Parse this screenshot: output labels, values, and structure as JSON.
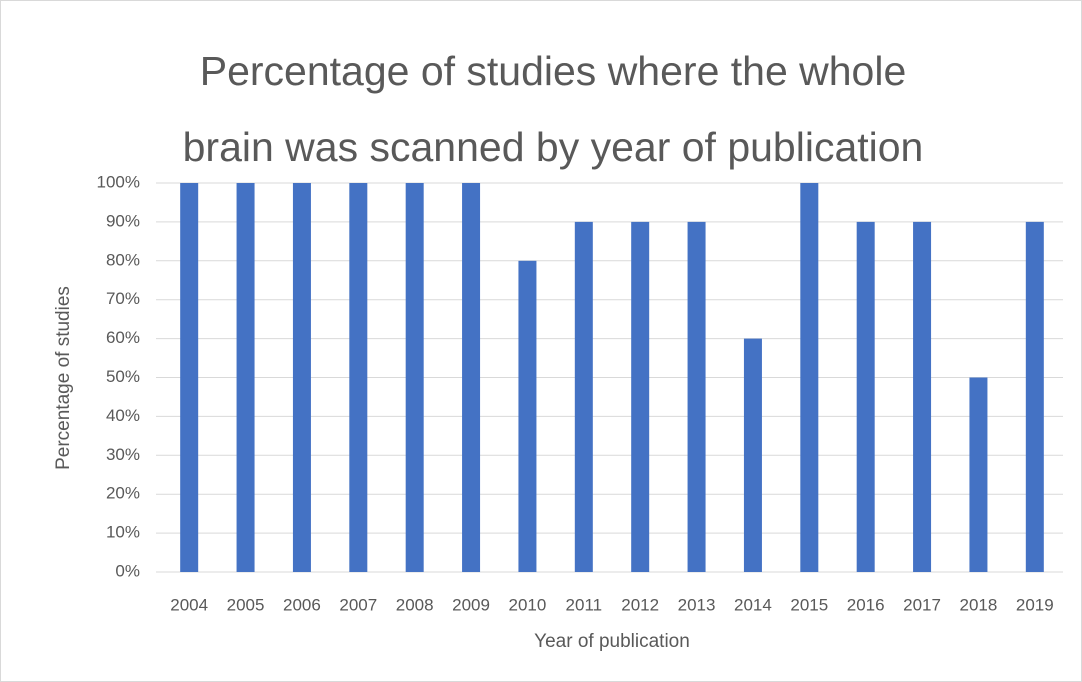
{
  "chart_data": {
    "type": "bar",
    "title": [
      "Percentage of studies where the whole",
      "brain was scanned by year of publication"
    ],
    "x_label": "Year of publication",
    "y_label": "Percentage of studies",
    "categories": [
      "2004",
      "2005",
      "2006",
      "2007",
      "2008",
      "2009",
      "2010",
      "2011",
      "2012",
      "2013",
      "2014",
      "2015",
      "2016",
      "2017",
      "2018",
      "2019"
    ],
    "values": [
      100,
      100,
      100,
      100,
      100,
      100,
      80,
      90,
      90,
      90,
      60,
      100,
      90,
      90,
      50,
      90
    ],
    "color": "#4472c4",
    "ylim": [
      0,
      100
    ],
    "yticks": [
      {
        "value": 0,
        "label": "0%"
      },
      {
        "value": 10,
        "label": "10%"
      },
      {
        "value": 20,
        "label": "20%"
      },
      {
        "value": 30,
        "label": "30%"
      },
      {
        "value": 40,
        "label": "40%"
      },
      {
        "value": 50,
        "label": "50%"
      },
      {
        "value": 60,
        "label": "60%"
      },
      {
        "value": 70,
        "label": "70%"
      },
      {
        "value": 80,
        "label": "80%"
      },
      {
        "value": 90,
        "label": "90%"
      },
      {
        "value": 100,
        "label": "100%"
      }
    ],
    "grid": true
  }
}
